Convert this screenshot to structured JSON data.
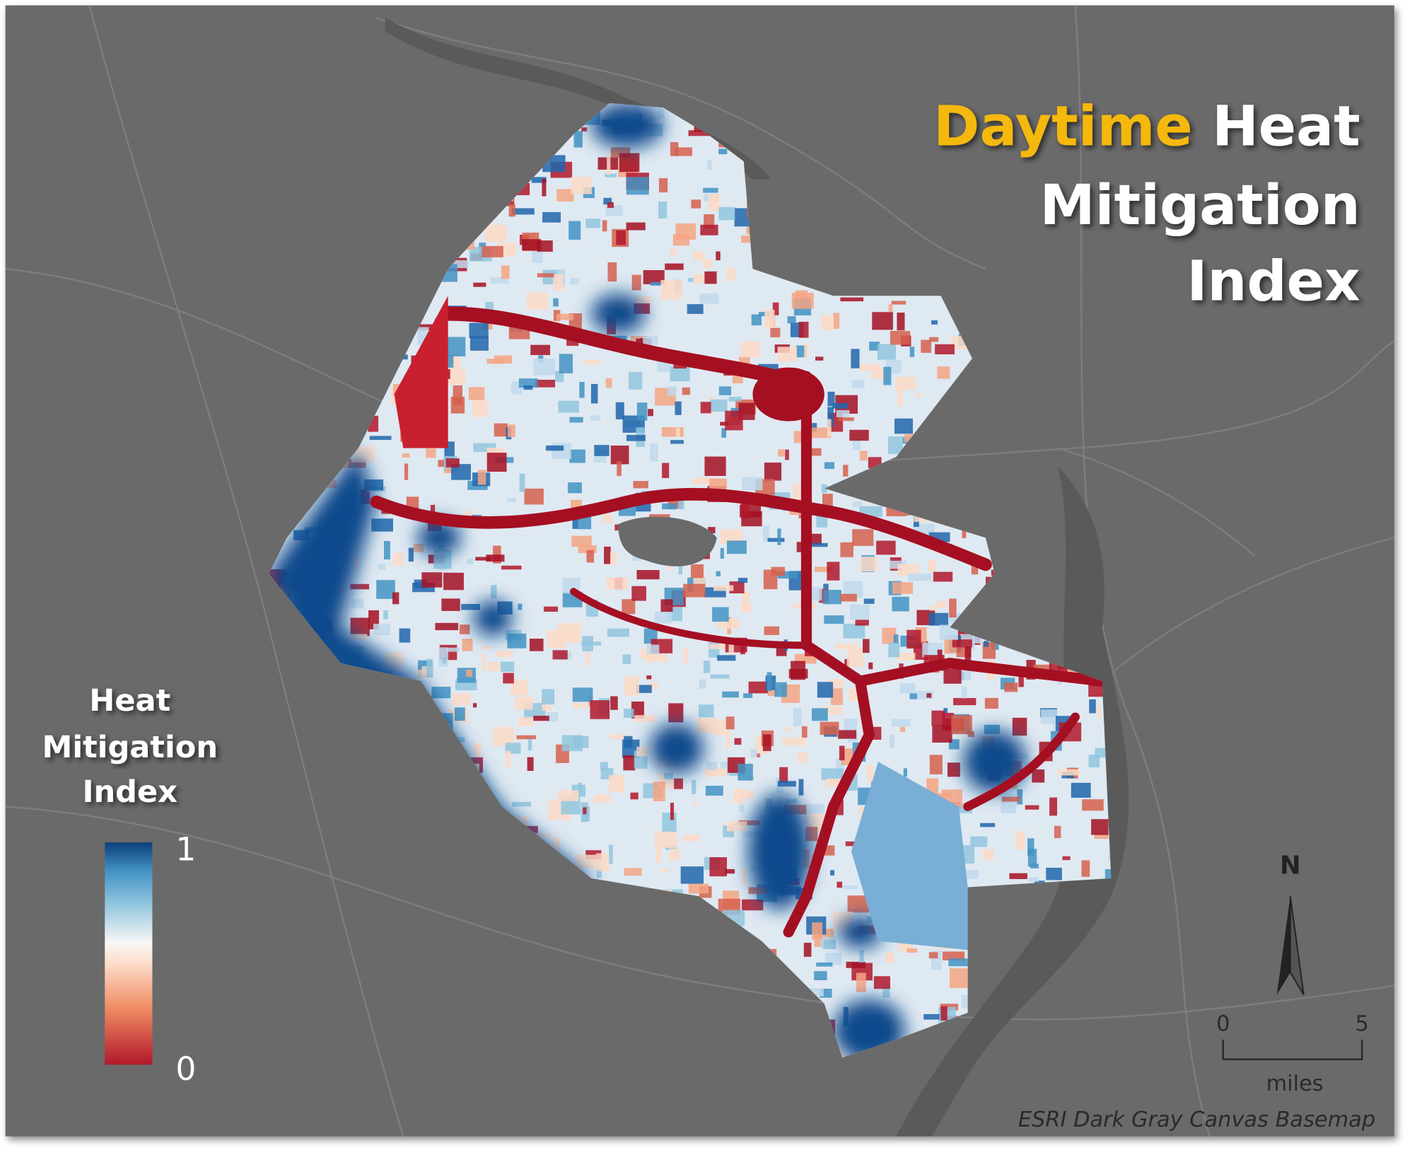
{
  "title": {
    "highlight": "Daytime",
    "lines": [
      "Heat",
      "Mitigation",
      "Index"
    ]
  },
  "legend": {
    "title_lines": [
      "Heat",
      "Mitigation",
      "Index"
    ],
    "max": 1,
    "min": 0
  },
  "north_arrow": {
    "label": "N"
  },
  "scale_bar": {
    "start": "0",
    "end": "5",
    "unit": "miles"
  },
  "credit": "ESRI Dark Gray Canvas Basemap"
}
